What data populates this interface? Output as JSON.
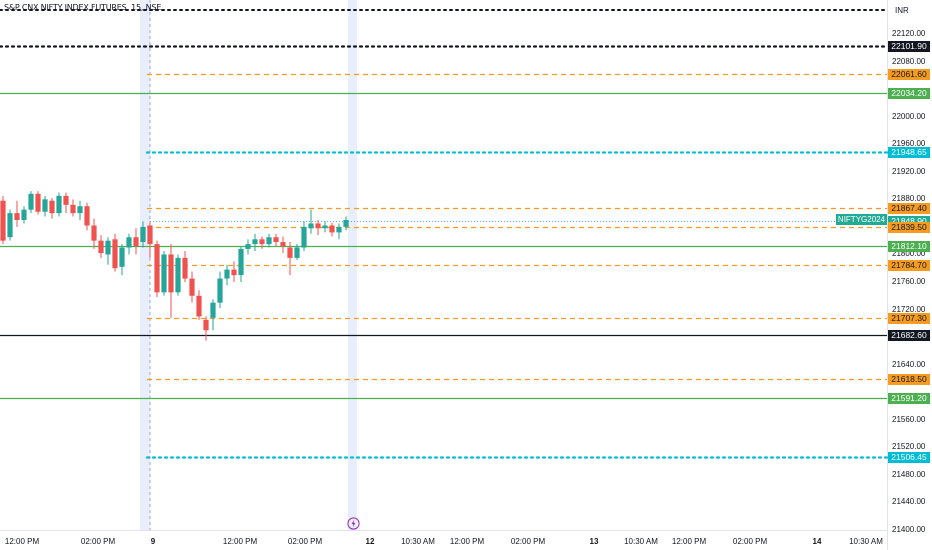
{
  "header": {
    "title": "S&P CNX NIFTY INDEX FUTURES, 15, NSE",
    "currency": "INR"
  },
  "symbol_tag": "NIFTYG2024",
  "colors": {
    "up": "#26a69a",
    "down": "#ef5350",
    "orange": "#f59b20",
    "green": "#4caf50",
    "cyan": "#00bcd4",
    "black": "#131722",
    "teal_tag": "#22ab94",
    "session_shade": "#e8eefc"
  },
  "chart_data": {
    "type": "candlestick",
    "price_axis": {
      "min": 21400,
      "max": 22150,
      "ticks": [
        "22120.00",
        "22080.00",
        "22000.00",
        "21960.00",
        "21920.00",
        "21880.00",
        "21800.00",
        "21760.00",
        "21720.00",
        "21640.00",
        "21560.00",
        "21520.00",
        "21480.00",
        "21440.00",
        "21400.00"
      ]
    },
    "time_axis": [
      "12:00 PM",
      "02:00 PM",
      "9",
      "12:00 PM",
      "02:00 PM",
      "12",
      "10:30 AM",
      "12:00 PM",
      "02:00 PM",
      "13",
      "10:30 AM",
      "12:00 PM",
      "02:00 PM",
      "14",
      "10:30 AM"
    ],
    "levels": [
      {
        "price": 22101.9,
        "label": "22101.90",
        "style": "dotted",
        "color": "black"
      },
      {
        "price": 22061.6,
        "label": "22061.60",
        "style": "dashed",
        "color": "orange"
      },
      {
        "price": 22034.2,
        "label": "22034.20",
        "style": "solid",
        "color": "green"
      },
      {
        "price": 21948.65,
        "label": "21948.65",
        "style": "dotted",
        "color": "cyan"
      },
      {
        "price": 21867.4,
        "label": "21867.40",
        "style": "dashed",
        "color": "orange"
      },
      {
        "price": 21848.9,
        "label": "21848.90",
        "style": "last",
        "color": "teal_tag"
      },
      {
        "price": 21839.5,
        "label": "21839.50",
        "style": "dashed",
        "color": "orange"
      },
      {
        "price": 21812.1,
        "label": "21812.10",
        "style": "solid",
        "color": "green"
      },
      {
        "price": 21784.7,
        "label": "21784.70",
        "style": "dashed",
        "color": "orange"
      },
      {
        "price": 21707.3,
        "label": "21707.30",
        "style": "dashed",
        "color": "orange"
      },
      {
        "price": 21682.6,
        "label": "21682.60",
        "style": "solid",
        "color": "black"
      },
      {
        "price": 21618.5,
        "label": "21618.50",
        "style": "dashed",
        "color": "orange"
      },
      {
        "price": 21591.2,
        "label": "21591.20",
        "style": "solid",
        "color": "green"
      },
      {
        "price": 21506.45,
        "label": "21506.45",
        "style": "dotted",
        "color": "cyan"
      }
    ],
    "candles": [
      {
        "o": 21878,
        "h": 21885,
        "c": 21820,
        "l": 21815
      },
      {
        "o": 21825,
        "h": 21865,
        "c": 21860,
        "l": 21820
      },
      {
        "o": 21860,
        "h": 21878,
        "c": 21850,
        "l": 21840
      },
      {
        "o": 21850,
        "h": 21870,
        "c": 21865,
        "l": 21845
      },
      {
        "o": 21865,
        "h": 21892,
        "c": 21888,
        "l": 21860
      },
      {
        "o": 21888,
        "h": 21892,
        "c": 21862,
        "l": 21858
      },
      {
        "o": 21862,
        "h": 21885,
        "c": 21880,
        "l": 21855
      },
      {
        "o": 21878,
        "h": 21882,
        "c": 21860,
        "l": 21852
      },
      {
        "o": 21860,
        "h": 21890,
        "c": 21885,
        "l": 21855
      },
      {
        "o": 21885,
        "h": 21890,
        "c": 21872,
        "l": 21860
      },
      {
        "o": 21872,
        "h": 21880,
        "c": 21860,
        "l": 21855
      },
      {
        "o": 21860,
        "h": 21878,
        "c": 21870,
        "l": 21850
      },
      {
        "o": 21870,
        "h": 21875,
        "c": 21842,
        "l": 21835
      },
      {
        "o": 21842,
        "h": 21852,
        "c": 21820,
        "l": 21808
      },
      {
        "o": 21820,
        "h": 21828,
        "c": 21802,
        "l": 21795
      },
      {
        "o": 21800,
        "h": 21825,
        "c": 21820,
        "l": 21785
      },
      {
        "o": 21822,
        "h": 21830,
        "c": 21780,
        "l": 21775
      },
      {
        "o": 21782,
        "h": 21815,
        "c": 21810,
        "l": 21770
      },
      {
        "o": 21810,
        "h": 21830,
        "c": 21825,
        "l": 21800
      },
      {
        "o": 21825,
        "h": 21838,
        "c": 21812,
        "l": 21800
      },
      {
        "o": 21818,
        "h": 21848,
        "c": 21840,
        "l": 21810
      },
      {
        "o": 21842,
        "h": 21848,
        "c": 21815,
        "l": 21795
      },
      {
        "o": 21815,
        "h": 21820,
        "c": 21745,
        "l": 21738
      },
      {
        "o": 21745,
        "h": 21805,
        "c": 21800,
        "l": 21740
      },
      {
        "o": 21800,
        "h": 21815,
        "c": 21745,
        "l": 21708
      },
      {
        "o": 21745,
        "h": 21800,
        "c": 21795,
        "l": 21740
      },
      {
        "o": 21795,
        "h": 21805,
        "c": 21765,
        "l": 21760
      },
      {
        "o": 21765,
        "h": 21775,
        "c": 21740,
        "l": 21730
      },
      {
        "o": 21740,
        "h": 21748,
        "c": 21710,
        "l": 21705
      },
      {
        "o": 21705,
        "h": 21710,
        "c": 21690,
        "l": 21675
      },
      {
        "o": 21708,
        "h": 21735,
        "c": 21730,
        "l": 21690
      },
      {
        "o": 21730,
        "h": 21775,
        "c": 21765,
        "l": 21722
      },
      {
        "o": 21765,
        "h": 21785,
        "c": 21778,
        "l": 21755
      },
      {
        "o": 21778,
        "h": 21790,
        "c": 21770,
        "l": 21760
      },
      {
        "o": 21770,
        "h": 21812,
        "c": 21808,
        "l": 21760
      },
      {
        "o": 21808,
        "h": 21822,
        "c": 21815,
        "l": 21800
      },
      {
        "o": 21815,
        "h": 21830,
        "c": 21822,
        "l": 21805
      },
      {
        "o": 21822,
        "h": 21826,
        "c": 21815,
        "l": 21808
      },
      {
        "o": 21815,
        "h": 21830,
        "c": 21825,
        "l": 21810
      },
      {
        "o": 21825,
        "h": 21830,
        "c": 21818,
        "l": 21812
      },
      {
        "o": 21818,
        "h": 21826,
        "c": 21812,
        "l": 21802
      },
      {
        "o": 21810,
        "h": 21818,
        "c": 21795,
        "l": 21770
      },
      {
        "o": 21795,
        "h": 21815,
        "c": 21810,
        "l": 21792
      },
      {
        "o": 21810,
        "h": 21848,
        "c": 21840,
        "l": 21805
      },
      {
        "o": 21838,
        "h": 21865,
        "c": 21845,
        "l": 21830
      },
      {
        "o": 21845,
        "h": 21850,
        "c": 21838,
        "l": 21828
      },
      {
        "o": 21838,
        "h": 21848,
        "c": 21842,
        "l": 21832
      },
      {
        "o": 21842,
        "h": 21846,
        "c": 21832,
        "l": 21826
      },
      {
        "o": 21832,
        "h": 21845,
        "c": 21840,
        "l": 21822
      },
      {
        "o": 21840,
        "h": 21855,
        "c": 21850,
        "l": 21835
      }
    ]
  }
}
